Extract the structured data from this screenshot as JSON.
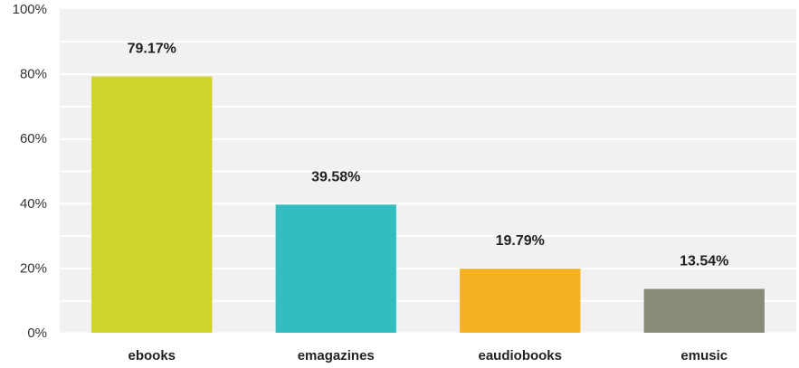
{
  "chart_data": {
    "type": "bar",
    "title": "",
    "xlabel": "",
    "ylabel": "",
    "categories": [
      "ebooks",
      "emagazines",
      "eaudiobooks",
      "emusic"
    ],
    "values": [
      79.17,
      39.58,
      19.79,
      13.54
    ],
    "value_labels": [
      "79.17%",
      "39.58%",
      "19.79%",
      "13.54%"
    ],
    "colors": [
      "#d0d42a",
      "#33bdbf",
      "#f5b122",
      "#8a8a78"
    ],
    "ylim": [
      0,
      100
    ],
    "yticks": [
      0,
      20,
      40,
      60,
      80,
      100
    ],
    "ytick_labels": [
      "0%",
      "20%",
      "40%",
      "60%",
      "80%",
      "100%"
    ],
    "grid": true,
    "legend": "none",
    "plot_background": "#f1f1f1",
    "gridline_color": "#ffffff"
  }
}
